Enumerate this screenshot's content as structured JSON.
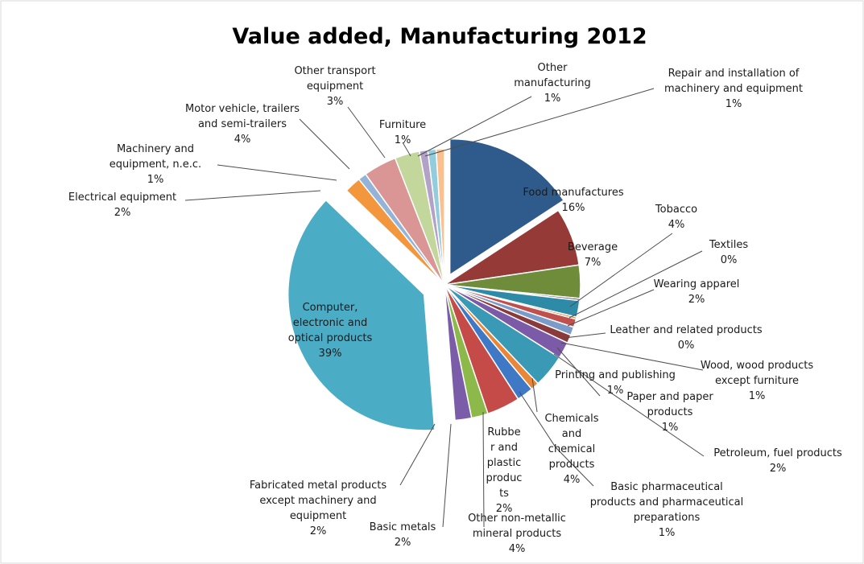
{
  "chart_data": {
    "type": "pie",
    "title": "Value added, Manufacturing  2012",
    "legend": "none",
    "slices": [
      {
        "name": "Food manufactures",
        "value": 16,
        "label": [
          "Food manufactures",
          "16%"
        ],
        "color": "#2F5A8C",
        "exploded": true
      },
      {
        "name": "Beverage",
        "value": 7,
        "label": [
          "Beverage",
          "7%"
        ],
        "color": "#963A37"
      },
      {
        "name": "Tobacco",
        "value": 4,
        "label": [
          "Tobacco",
          "4%"
        ],
        "color": "#6E8C3A"
      },
      {
        "name": "Textiles",
        "value": 0,
        "label": [
          "Textiles",
          "0%"
        ],
        "color": "#5A4A7A"
      },
      {
        "name": "Wearing apparel",
        "value": 2,
        "label": [
          "Wearing apparel",
          "2%"
        ],
        "color": "#2E8BA8"
      },
      {
        "name": "Leather and related products",
        "value": 0,
        "label": [
          "Leather and related products",
          "0%"
        ],
        "color": "#D9822B"
      },
      {
        "name": "Wood, wood products except furniture",
        "value": 1,
        "label": [
          "Wood, wood products",
          "except furniture",
          "1%"
        ],
        "color": "#C0504D"
      },
      {
        "name": "Printing and publishing",
        "value": 1,
        "label": [
          "Printing and publishing",
          "1%"
        ],
        "color": "#7B9BC9"
      },
      {
        "name": "Paper and paper products",
        "value": 1,
        "label": [
          "Paper and paper",
          "products",
          "1%"
        ],
        "color": "#8A3A3A"
      },
      {
        "name": "Petroleum, fuel products",
        "value": 2,
        "label": [
          "Petroleum, fuel products",
          "2%"
        ],
        "color": "#7B5BA8"
      },
      {
        "name": "Chemicals and chemical products",
        "value": 4,
        "label": [
          "Chemicals",
          "and",
          "chemical",
          "products",
          "4%"
        ],
        "color": "#3A9AB5"
      },
      {
        "name": "Basic pharmaceutical products and pharmaceutical preparations",
        "value": 1,
        "label": [
          "Basic pharmaceutical",
          "products and pharmaceutical",
          "preparations",
          "1%"
        ],
        "color": "#E8873A"
      },
      {
        "name": "Rubber and plastic products",
        "value": 2,
        "label": [
          "Rubbe",
          "r and",
          "plastic",
          "produc",
          "ts",
          "2%"
        ],
        "color": "#3F78C5"
      },
      {
        "name": "Other non-metallic mineral products",
        "value": 4,
        "label": [
          "Other non-metallic",
          "mineral products",
          "4%"
        ],
        "color": "#C44B48"
      },
      {
        "name": "Basic metals",
        "value": 2,
        "label": [
          "Basic metals",
          "2%"
        ],
        "color": "#8DB84A"
      },
      {
        "name": "Fabricated metal products except machinery and equipment",
        "value": 2,
        "label": [
          "Fabricated metal products",
          "except machinery and",
          "equipment",
          "2%"
        ],
        "color": "#7A5CA8"
      },
      {
        "name": "Computer, electronic and optical products",
        "value": 39,
        "label": [
          "Computer,",
          "electronic and",
          "optical products",
          "39%"
        ],
        "color": "#4BACC6",
        "exploded": true
      },
      {
        "name": "Electrical equipment",
        "value": 2,
        "label": [
          "Electrical equipment",
          "2%"
        ],
        "color": "#F3973F"
      },
      {
        "name": "Machinery and equipment, n.e.c.",
        "value": 1,
        "label": [
          "Machinery and",
          "equipment, n.e.c.",
          "1%"
        ],
        "color": "#95B3D7"
      },
      {
        "name": "Motor vehicle, trailers and semi-trailers",
        "value": 4,
        "label": [
          "Motor vehicle, trailers",
          "and semi-trailers",
          "4%"
        ],
        "color": "#D99694"
      },
      {
        "name": "Other transport equipment",
        "value": 3,
        "label": [
          "Other transport",
          "equipment",
          "3%"
        ],
        "color": "#C3D69B"
      },
      {
        "name": "Furniture",
        "value": 1,
        "label": [
          "Furniture",
          "1%"
        ],
        "color": "#B3A2C7"
      },
      {
        "name": "Other manufacturing",
        "value": 1,
        "label": [
          "Other",
          "manufacturing",
          "1%"
        ],
        "color": "#93CDDD"
      },
      {
        "name": "Repair and installation of machinery and equipment",
        "value": 1,
        "label": [
          "Repair and installation of",
          "machinery and equipment",
          "1%"
        ],
        "color": "#FAC090"
      }
    ]
  }
}
